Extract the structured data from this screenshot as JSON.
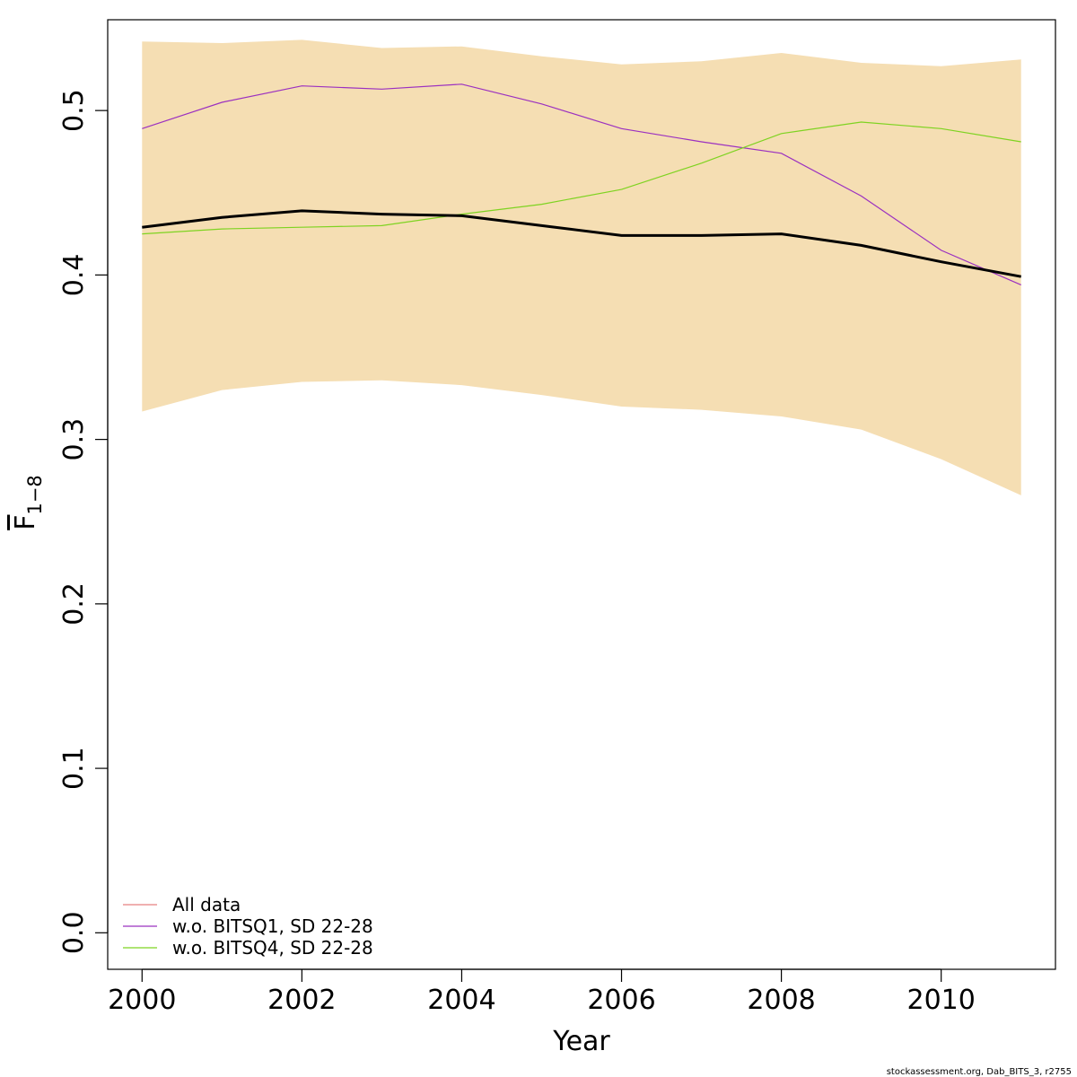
{
  "chart_data": {
    "type": "line",
    "xlabel": "Year",
    "ylabel": "F",
    "ylabel_subscript": "1−8",
    "xlim": [
      1999.57,
      2011.43
    ],
    "ylim": [
      -0.0222,
      0.5552
    ],
    "xticks": [
      2000,
      2002,
      2004,
      2006,
      2008,
      2010
    ],
    "yticks": [
      0.0,
      0.1,
      0.2,
      0.3,
      0.4,
      0.5
    ],
    "ytick_labels": [
      "0.0",
      "0.1",
      "0.2",
      "0.3",
      "0.4",
      "0.5"
    ],
    "x": [
      2000,
      2001,
      2002,
      2003,
      2004,
      2005,
      2006,
      2007,
      2008,
      2009,
      2010,
      2011
    ],
    "band": {
      "color": "#F5DEB3",
      "lower": [
        0.317,
        0.33,
        0.335,
        0.336,
        0.333,
        0.327,
        0.32,
        0.318,
        0.314,
        0.306,
        0.288,
        0.266
      ],
      "upper": [
        0.542,
        0.541,
        0.543,
        0.538,
        0.539,
        0.533,
        0.528,
        0.53,
        0.535,
        0.529,
        0.527,
        0.531
      ]
    },
    "main_line": {
      "color": "#000000",
      "values": [
        0.429,
        0.435,
        0.439,
        0.437,
        0.436,
        0.43,
        0.424,
        0.424,
        0.425,
        0.418,
        0.408,
        0.399
      ]
    },
    "series": [
      {
        "name": "All data",
        "color": "#E88080",
        "values": [
          0.429,
          0.435,
          0.439,
          0.437,
          0.436,
          0.43,
          0.424,
          0.424,
          0.425,
          0.418,
          0.408,
          0.399
        ]
      },
      {
        "name": "w.o. BITSQ1, SD 22-28",
        "color": "#9B30C0",
        "values": [
          0.489,
          0.505,
          0.515,
          0.513,
          0.516,
          0.504,
          0.489,
          0.481,
          0.474,
          0.448,
          0.415,
          0.394
        ]
      },
      {
        "name": "w.o. BITSQ4, SD 22-28",
        "color": "#7ED321",
        "values": [
          0.425,
          0.428,
          0.429,
          0.43,
          0.437,
          0.443,
          0.452,
          0.468,
          0.486,
          0.493,
          0.489,
          0.481
        ]
      }
    ],
    "legend_position": "bottom-left"
  },
  "footer": "stockassessment.org, Dab_BITS_3, r2755"
}
